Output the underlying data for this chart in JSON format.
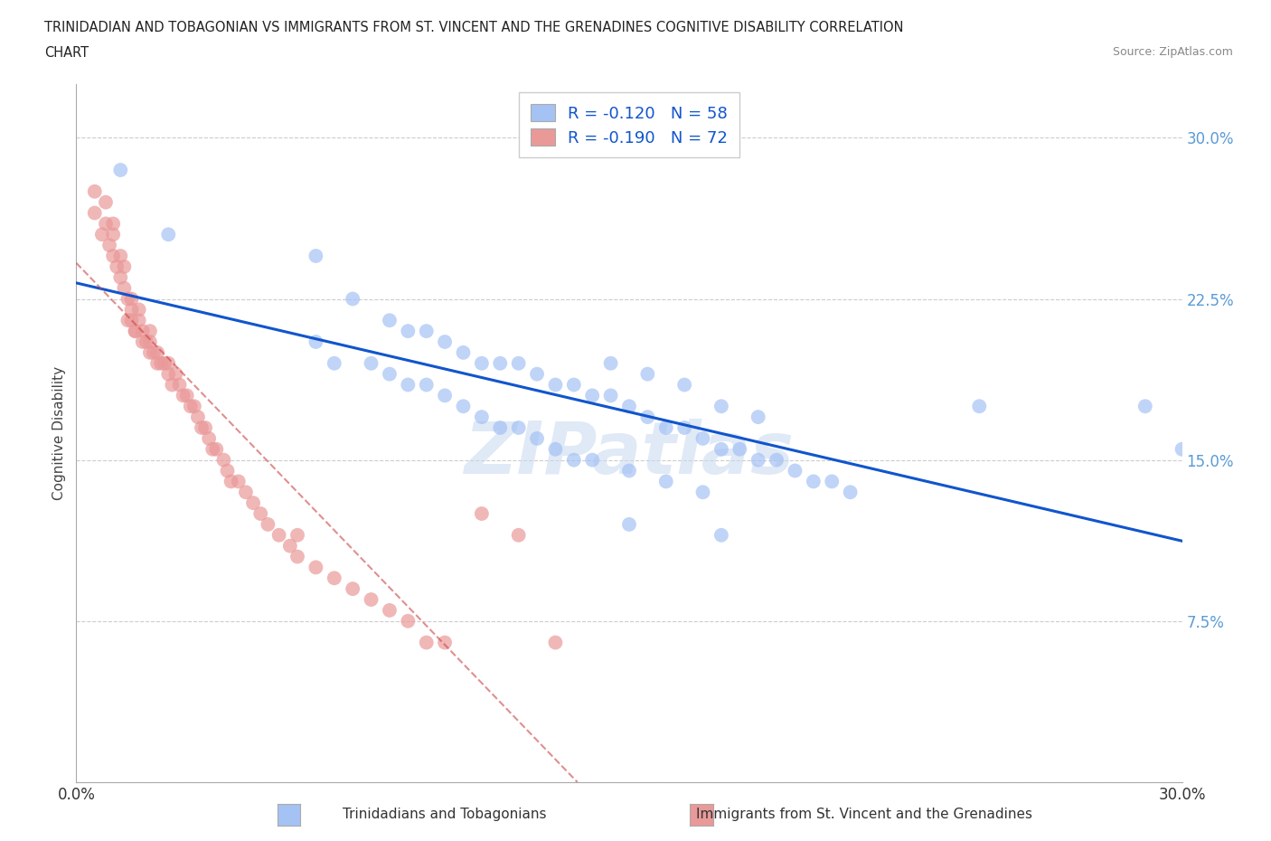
{
  "title_line1": "TRINIDADIAN AND TOBAGONIAN VS IMMIGRANTS FROM ST. VINCENT AND THE GRENADINES COGNITIVE DISABILITY CORRELATION",
  "title_line2": "CHART",
  "source": "Source: ZipAtlas.com",
  "ylabel": "Cognitive Disability",
  "xlim": [
    0.0,
    0.3
  ],
  "ylim": [
    0.0,
    0.325
  ],
  "yticks": [
    0.0,
    0.075,
    0.15,
    0.225,
    0.3
  ],
  "ytick_labels": [
    "",
    "7.5%",
    "15.0%",
    "22.5%",
    "30.0%"
  ],
  "blue_R": -0.12,
  "blue_N": 58,
  "pink_R": -0.19,
  "pink_N": 72,
  "blue_color": "#a4c2f4",
  "pink_color": "#ea9999",
  "blue_line_color": "#1155cc",
  "pink_line_color": "#cc4444",
  "legend_label_blue": "Trinidadians and Tobagonians",
  "legend_label_pink": "Immigrants from St. Vincent and the Grenadines",
  "watermark": "ZIPatlas",
  "blue_x": [
    0.012,
    0.025,
    0.065,
    0.075,
    0.085,
    0.09,
    0.095,
    0.1,
    0.105,
    0.11,
    0.115,
    0.12,
    0.125,
    0.13,
    0.135,
    0.14,
    0.145,
    0.15,
    0.155,
    0.16,
    0.165,
    0.17,
    0.175,
    0.18,
    0.185,
    0.19,
    0.195,
    0.2,
    0.205,
    0.21,
    0.065,
    0.07,
    0.08,
    0.085,
    0.09,
    0.095,
    0.1,
    0.105,
    0.11,
    0.115,
    0.12,
    0.125,
    0.13,
    0.135,
    0.14,
    0.15,
    0.16,
    0.17,
    0.145,
    0.155,
    0.165,
    0.175,
    0.185,
    0.245,
    0.29,
    0.3,
    0.15,
    0.175
  ],
  "blue_y": [
    0.285,
    0.255,
    0.245,
    0.225,
    0.215,
    0.21,
    0.21,
    0.205,
    0.2,
    0.195,
    0.195,
    0.195,
    0.19,
    0.185,
    0.185,
    0.18,
    0.18,
    0.175,
    0.17,
    0.165,
    0.165,
    0.16,
    0.155,
    0.155,
    0.15,
    0.15,
    0.145,
    0.14,
    0.14,
    0.135,
    0.205,
    0.195,
    0.195,
    0.19,
    0.185,
    0.185,
    0.18,
    0.175,
    0.17,
    0.165,
    0.165,
    0.16,
    0.155,
    0.15,
    0.15,
    0.145,
    0.14,
    0.135,
    0.195,
    0.19,
    0.185,
    0.175,
    0.17,
    0.175,
    0.175,
    0.155,
    0.12,
    0.115
  ],
  "pink_x": [
    0.005,
    0.005,
    0.007,
    0.008,
    0.008,
    0.009,
    0.01,
    0.01,
    0.01,
    0.011,
    0.012,
    0.012,
    0.013,
    0.013,
    0.014,
    0.015,
    0.015,
    0.015,
    0.016,
    0.017,
    0.017,
    0.018,
    0.019,
    0.02,
    0.02,
    0.021,
    0.022,
    0.023,
    0.024,
    0.025,
    0.025,
    0.026,
    0.027,
    0.028,
    0.029,
    0.03,
    0.031,
    0.032,
    0.033,
    0.034,
    0.035,
    0.036,
    0.037,
    0.038,
    0.04,
    0.041,
    0.042,
    0.044,
    0.046,
    0.048,
    0.05,
    0.052,
    0.055,
    0.058,
    0.06,
    0.065,
    0.07,
    0.075,
    0.08,
    0.085,
    0.09,
    0.095,
    0.1,
    0.11,
    0.12,
    0.13,
    0.014,
    0.016,
    0.018,
    0.02,
    0.022,
    0.06
  ],
  "pink_y": [
    0.265,
    0.275,
    0.255,
    0.26,
    0.27,
    0.25,
    0.245,
    0.255,
    0.26,
    0.24,
    0.235,
    0.245,
    0.23,
    0.24,
    0.225,
    0.22,
    0.225,
    0.215,
    0.21,
    0.215,
    0.22,
    0.21,
    0.205,
    0.205,
    0.21,
    0.2,
    0.2,
    0.195,
    0.195,
    0.19,
    0.195,
    0.185,
    0.19,
    0.185,
    0.18,
    0.18,
    0.175,
    0.175,
    0.17,
    0.165,
    0.165,
    0.16,
    0.155,
    0.155,
    0.15,
    0.145,
    0.14,
    0.14,
    0.135,
    0.13,
    0.125,
    0.12,
    0.115,
    0.11,
    0.105,
    0.1,
    0.095,
    0.09,
    0.085,
    0.08,
    0.075,
    0.065,
    0.065,
    0.125,
    0.115,
    0.065,
    0.215,
    0.21,
    0.205,
    0.2,
    0.195,
    0.115
  ]
}
